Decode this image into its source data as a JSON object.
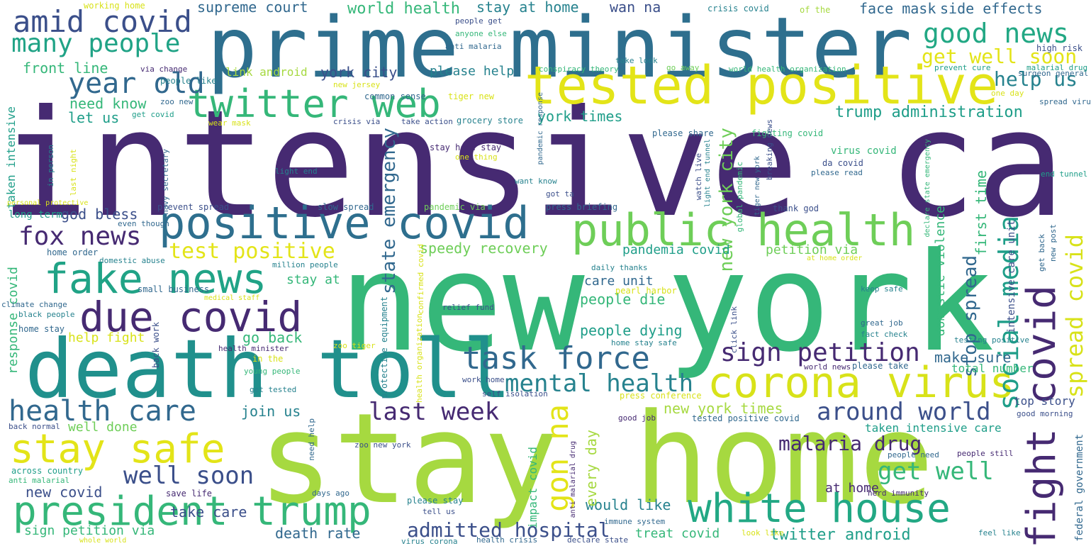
{
  "palette": {
    "dark_purple": "#462a72",
    "indigo": "#3b4f8a",
    "blue": "#31688e",
    "teal": "#26828e",
    "sea_green": "#1f9e89",
    "green": "#35b779",
    "light_green": "#6ece58",
    "lime": "#a6d940",
    "yellow": "#e3e418"
  },
  "words": [
    {
      "text": "intensive care"
    },
    {
      "text": "new york"
    },
    {
      "text": "stay home"
    },
    {
      "text": "prime minister"
    },
    {
      "text": "death toll"
    },
    {
      "text": "tested positive"
    },
    {
      "text": "positive covid"
    },
    {
      "text": "public health"
    },
    {
      "text": "corona virus"
    },
    {
      "text": "fake news"
    },
    {
      "text": "due covid"
    },
    {
      "text": "president trump"
    },
    {
      "text": "white house"
    },
    {
      "text": "twitter web"
    },
    {
      "text": "stay safe"
    },
    {
      "text": "fight covid"
    },
    {
      "text": "task force"
    },
    {
      "text": "amid covid"
    },
    {
      "text": "health care"
    },
    {
      "text": "year old"
    },
    {
      "text": "many people"
    },
    {
      "text": "good news"
    },
    {
      "text": "social media"
    },
    {
      "text": "sign petition"
    },
    {
      "text": "mental health"
    },
    {
      "text": "around world"
    },
    {
      "text": "last week"
    },
    {
      "text": "gon na"
    },
    {
      "text": "get well"
    },
    {
      "text": "admitted hospital"
    },
    {
      "text": "fox news"
    },
    {
      "text": "well soon"
    },
    {
      "text": "spread covid"
    },
    {
      "text": "malaria drug"
    },
    {
      "text": "get well soon"
    },
    {
      "text": "test positive"
    },
    {
      "text": "help us"
    },
    {
      "text": "stop spread"
    },
    {
      "text": "new york city"
    },
    {
      "text": "state emergency"
    },
    {
      "text": "trump administration"
    },
    {
      "text": "supreme court"
    },
    {
      "text": "world health"
    },
    {
      "text": "stay at home"
    },
    {
      "text": "wan na"
    },
    {
      "text": "face mask"
    },
    {
      "text": "side effects"
    },
    {
      "text": "front line"
    },
    {
      "text": "york city"
    },
    {
      "text": "please help"
    },
    {
      "text": "need know"
    },
    {
      "text": "let us"
    },
    {
      "text": "link android"
    },
    {
      "text": "york times"
    },
    {
      "text": "god bless"
    },
    {
      "text": "speedy recovery"
    },
    {
      "text": "pandemia covid"
    },
    {
      "text": "petition via"
    },
    {
      "text": "people die"
    },
    {
      "text": "care unit"
    },
    {
      "text": "people dying"
    },
    {
      "text": "go back"
    },
    {
      "text": "make sure"
    },
    {
      "text": "join us"
    },
    {
      "text": "new york times"
    },
    {
      "text": "well done"
    },
    {
      "text": "help fight"
    },
    {
      "text": "stay at"
    },
    {
      "text": "first time"
    },
    {
      "text": "domestic violence"
    },
    {
      "text": "intensive care unit"
    },
    {
      "text": "top story"
    },
    {
      "text": "total number"
    },
    {
      "text": "taken intensive care"
    },
    {
      "text": "at home"
    },
    {
      "text": "would like"
    },
    {
      "text": "every day"
    },
    {
      "text": "impact covid"
    },
    {
      "text": "death rate"
    },
    {
      "text": "take care"
    },
    {
      "text": "treat covid"
    },
    {
      "text": "twitter android"
    },
    {
      "text": "new covid"
    },
    {
      "text": "sign petition via"
    },
    {
      "text": "response covid"
    },
    {
      "text": "taken intensive"
    },
    {
      "text": "long term"
    },
    {
      "text": "federal government"
    },
    {
      "text": "working home"
    },
    {
      "text": "people get"
    },
    {
      "text": "anyone else"
    },
    {
      "text": "anti malaria"
    },
    {
      "text": "take look"
    },
    {
      "text": "crisis covid"
    },
    {
      "text": "of the"
    },
    {
      "text": "surgeon general"
    },
    {
      "text": "high risk"
    },
    {
      "text": "prevent cure"
    },
    {
      "text": "malarial drug"
    },
    {
      "text": "one day"
    },
    {
      "text": "spread virus"
    },
    {
      "text": "people like"
    },
    {
      "text": "via change"
    },
    {
      "text": "conspiracy theory"
    },
    {
      "text": "go away"
    },
    {
      "text": "world health organization"
    },
    {
      "text": "new jersey"
    },
    {
      "text": "common sense"
    },
    {
      "text": "tiger new"
    },
    {
      "text": "zoo new"
    },
    {
      "text": "get covid"
    },
    {
      "text": "crisis via"
    },
    {
      "text": "take action"
    },
    {
      "text": "grocery store"
    },
    {
      "text": "please share"
    },
    {
      "text": "fighting covid"
    },
    {
      "text": "wear mask"
    },
    {
      "text": "pandemic response"
    },
    {
      "text": "breaking news"
    },
    {
      "text": "tiger new york"
    },
    {
      "text": "stay home stay"
    },
    {
      "text": "one thing"
    },
    {
      "text": "in person"
    },
    {
      "text": "last night"
    },
    {
      "text": "navy secretary"
    },
    {
      "text": "light end"
    },
    {
      "text": "want know"
    },
    {
      "text": "watch live"
    },
    {
      "text": "light end tunnel"
    },
    {
      "text": "global pandemic"
    },
    {
      "text": "virus covid"
    },
    {
      "text": "da covid"
    },
    {
      "text": "please read"
    },
    {
      "text": "end tunnel"
    },
    {
      "text": "declare state emergency"
    },
    {
      "text": "got ta"
    },
    {
      "text": "personal protective"
    },
    {
      "text": "slow spread"
    },
    {
      "text": "prevent spread"
    },
    {
      "text": "pandemic via"
    },
    {
      "text": "press briefing"
    },
    {
      "text": "thank god"
    },
    {
      "text": "even though"
    },
    {
      "text": "home order"
    },
    {
      "text": "domestic abuse"
    },
    {
      "text": "million people"
    },
    {
      "text": "confirmed covid"
    },
    {
      "text": "daily thanks"
    },
    {
      "text": "get back"
    },
    {
      "text": "new post"
    },
    {
      "text": "at home order"
    },
    {
      "text": "small business"
    },
    {
      "text": "medical staff"
    },
    {
      "text": "protective equipment"
    },
    {
      "text": "pearl harbor"
    },
    {
      "text": "keep safe"
    },
    {
      "text": "climate change"
    },
    {
      "text": "black people"
    },
    {
      "text": "relief fund"
    },
    {
      "text": "click link"
    },
    {
      "text": "great job"
    },
    {
      "text": "home stay"
    },
    {
      "text": "back work"
    },
    {
      "text": "health organization"
    },
    {
      "text": "fact check"
    },
    {
      "text": "testing positive"
    },
    {
      "text": "health minister"
    },
    {
      "text": "zoo tiger"
    },
    {
      "text": "home stay safe"
    },
    {
      "text": "in the"
    },
    {
      "text": "work home"
    },
    {
      "text": "world news"
    },
    {
      "text": "please take"
    },
    {
      "text": "young people"
    },
    {
      "text": "self isolation"
    },
    {
      "text": "press conference"
    },
    {
      "text": "get tested"
    },
    {
      "text": "good morning"
    },
    {
      "text": "tested positive covid"
    },
    {
      "text": "good job"
    },
    {
      "text": "back normal"
    },
    {
      "text": "need help"
    },
    {
      "text": "zoo new york"
    },
    {
      "text": "people need"
    },
    {
      "text": "people still"
    },
    {
      "text": "across country"
    },
    {
      "text": "anti malarial drug"
    },
    {
      "text": "anti malarial"
    },
    {
      "text": "herd immunity"
    },
    {
      "text": "save life"
    },
    {
      "text": "days ago"
    },
    {
      "text": "please stay"
    },
    {
      "text": "tell us"
    },
    {
      "text": "immune system"
    },
    {
      "text": "look like"
    },
    {
      "text": "feel like"
    },
    {
      "text": "whole world"
    },
    {
      "text": "virus corona"
    },
    {
      "text": "health crisis"
    },
    {
      "text": "declare state"
    }
  ]
}
